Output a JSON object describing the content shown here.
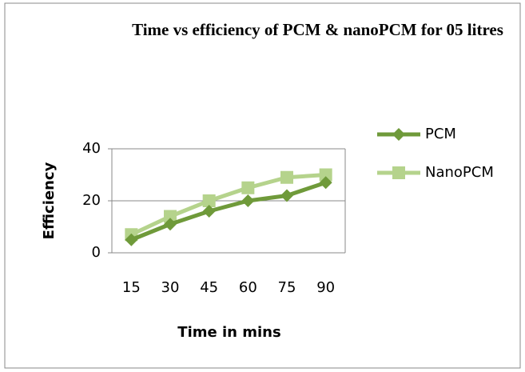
{
  "chart_data": {
    "type": "line",
    "title": "Time vs efficiency of PCM & nanoPCM for 05 litres",
    "x_label": "Time in mins",
    "y_label": "Efficiency",
    "categories": [
      "15",
      "30",
      "45",
      "60",
      "75",
      "90"
    ],
    "series": [
      {
        "name": "PCM",
        "color": "#6f9a3a",
        "marker": "diamond",
        "values": [
          5,
          11,
          16,
          20,
          22,
          27
        ]
      },
      {
        "name": "NanoPCM",
        "color": "#b5d38c",
        "marker": "square",
        "values": [
          7,
          14,
          20,
          25,
          29,
          30
        ]
      }
    ],
    "ylim": [
      0,
      40
    ],
    "yticks": [
      0,
      20,
      40
    ],
    "grid": true,
    "legend": "right"
  }
}
